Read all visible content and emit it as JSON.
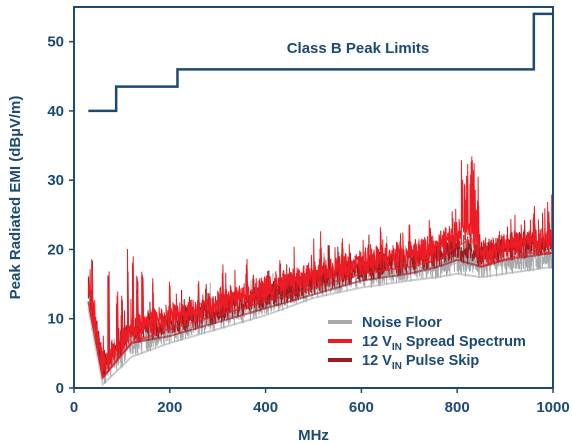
{
  "chart_data": {
    "type": "line",
    "title": "",
    "xlabel": "MHz",
    "ylabel": "Peak Radiated EMI (dBµV/m)",
    "xlim": [
      0,
      1000
    ],
    "ylim": [
      0,
      55
    ],
    "x_ticks": [
      "0",
      "200",
      "400",
      "600",
      "800",
      "1000"
    ],
    "y_ticks": [
      "0",
      "10",
      "20",
      "30",
      "40",
      "50"
    ],
    "grid": false,
    "legend_position": "bottom-right",
    "annotation": "Class B Peak Limits",
    "limit_line": {
      "name": "Class B Peak Limits",
      "color": "#1b4a72",
      "x": [
        30,
        88,
        88,
        216,
        216,
        960,
        960,
        1000
      ],
      "y": [
        40,
        40,
        43.5,
        43.5,
        46,
        46,
        54,
        54
      ]
    },
    "series": [
      {
        "name": "Noise Floor",
        "color": "#a7a9ac",
        "x": [
          30,
          60,
          120,
          200,
          300,
          400,
          500,
          600,
          700,
          760,
          800,
          850,
          900,
          950,
          1000
        ],
        "y": [
          14,
          3,
          7,
          9,
          11,
          13,
          15.5,
          17,
          18,
          18.5,
          19,
          18.5,
          19,
          19.5,
          20
        ]
      },
      {
        "name": "12 VIN Spread Spectrum",
        "legend_main": "12 V",
        "legend_sub": "IN",
        "legend_rest": " Spread Spectrum",
        "color": "#ed1c24",
        "x": [
          30,
          60,
          120,
          200,
          300,
          400,
          500,
          600,
          700,
          760,
          800,
          830,
          850,
          900,
          950,
          1000
        ],
        "y": [
          15,
          4,
          9,
          11,
          13,
          15,
          17,
          19,
          20,
          21,
          23,
          24,
          20,
          21,
          22,
          22
        ]
      },
      {
        "name": "12 VIN Pulse Skip",
        "legend_main": "12 V",
        "legend_sub": "IN",
        "legend_rest": " Pulse Skip",
        "color": "#9e1b22",
        "x": [
          30,
          60,
          120,
          200,
          300,
          400,
          500,
          600,
          700,
          760,
          800,
          850,
          900,
          950,
          1000
        ],
        "y": [
          15,
          4,
          9,
          10,
          12,
          14,
          16,
          18,
          19,
          20,
          21,
          20,
          21,
          21.5,
          22
        ]
      }
    ]
  }
}
